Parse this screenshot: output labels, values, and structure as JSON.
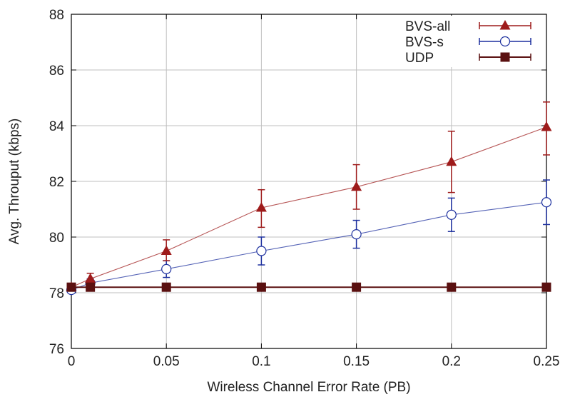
{
  "chart_data": {
    "type": "line",
    "title": "",
    "xlabel": "Wireless Channel Error Rate (PB)",
    "ylabel": "Avg. Throuput (kbps)",
    "xlim": [
      0,
      0.25
    ],
    "ylim": [
      76,
      88
    ],
    "x_ticks": [
      0,
      0.05,
      0.1,
      0.15,
      0.2,
      0.25
    ],
    "x_tick_labels": [
      "0",
      "0.05",
      "0.1",
      "0.15",
      "0.2",
      "0.25"
    ],
    "y_ticks": [
      76,
      78,
      80,
      82,
      84,
      86,
      88
    ],
    "y_tick_labels": [
      "76",
      "78",
      "80",
      "82",
      "84",
      "86",
      "88"
    ],
    "grid": true,
    "legend_position": "top-right",
    "series": [
      {
        "name": "BVS-all",
        "color": "#9e1b1b",
        "marker": "triangle",
        "x": [
          0,
          0.01,
          0.05,
          0.1,
          0.15,
          0.2,
          0.25
        ],
        "y": [
          78.2,
          78.5,
          79.5,
          81.05,
          81.8,
          82.7,
          83.95
        ],
        "err_low": [
          0,
          0.2,
          0.35,
          0.7,
          0.8,
          1.1,
          1.0
        ],
        "err_high": [
          0,
          0.2,
          0.4,
          0.65,
          0.8,
          1.1,
          0.9
        ]
      },
      {
        "name": "BVS-s",
        "color": "#1c2f9e",
        "marker": "circle-open",
        "x": [
          0,
          0.01,
          0.05,
          0.1,
          0.15,
          0.2,
          0.25
        ],
        "y": [
          78.1,
          78.35,
          78.85,
          79.5,
          80.1,
          80.8,
          81.25
        ],
        "err_low": [
          0,
          0.15,
          0.3,
          0.5,
          0.5,
          0.6,
          0.8
        ],
        "err_high": [
          0,
          0.15,
          0.3,
          0.5,
          0.5,
          0.6,
          0.8
        ]
      },
      {
        "name": "UDP",
        "color": "#5a1010",
        "marker": "square",
        "x": [
          0,
          0.01,
          0.05,
          0.1,
          0.15,
          0.2,
          0.25
        ],
        "y": [
          78.2,
          78.2,
          78.2,
          78.2,
          78.2,
          78.2,
          78.2
        ],
        "err_low": [
          0,
          0,
          0,
          0,
          0,
          0,
          0
        ],
        "err_high": [
          0,
          0,
          0,
          0,
          0,
          0,
          0
        ]
      }
    ]
  }
}
